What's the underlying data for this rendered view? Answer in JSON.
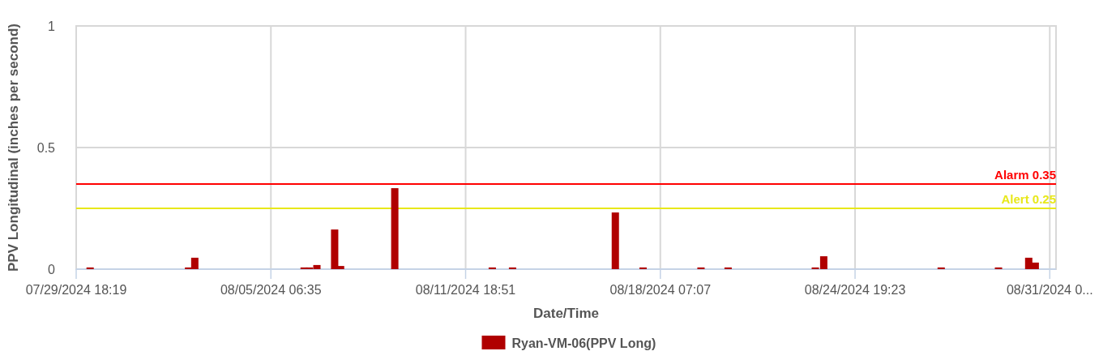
{
  "chart_data": {
    "type": "bar",
    "xlabel": "Date/Time",
    "ylabel": "PPV Longitudinal (inches per second)",
    "x": [
      "2024-07-30T05:30",
      "2024-08-02T12:30",
      "2024-08-02T17:30",
      "2024-08-06T09:15",
      "2024-08-06T13:30",
      "2024-08-06T19:30",
      "2024-08-07T09:45",
      "2024-08-07T14:30",
      "2024-08-09T10:00",
      "2024-08-12T16:15",
      "2024-08-13T08:30",
      "2024-08-16T19:00",
      "2024-08-17T17:15",
      "2024-08-19T15:45",
      "2024-08-20T13:30",
      "2024-08-23T11:30",
      "2024-08-23T18:15",
      "2024-08-27T16:30",
      "2024-08-29T14:30",
      "2024-08-30T14:45",
      "2024-08-30T20:00"
    ],
    "series": [
      {
        "name": "Ryan-VM-06(PPV Long)",
        "color": "#b00000",
        "values": [
          0.007,
          0.007,
          0.047,
          0.007,
          0.007,
          0.017,
          0.163,
          0.013,
          0.333,
          0.007,
          0.007,
          0.233,
          0.007,
          0.007,
          0.007,
          0.007,
          0.053,
          0.007,
          0.007,
          0.047,
          0.027
        ]
      }
    ],
    "xlim": [
      "2024-07-29T18:19",
      "2024-08-31T12:40"
    ],
    "xticks": [
      {
        "value": "2024-07-29T18:19",
        "label": "07/29/2024 18:19"
      },
      {
        "value": "2024-08-05T06:35",
        "label": "08/05/2024 06:35"
      },
      {
        "value": "2024-08-11T18:51",
        "label": "08/11/2024 18:51"
      },
      {
        "value": "2024-08-18T07:07",
        "label": "08/18/2024 07:07"
      },
      {
        "value": "2024-08-24T19:23",
        "label": "08/24/2024 19:23"
      },
      {
        "value": "2024-08-31T07:39",
        "label": "08/31/2024 0..."
      }
    ],
    "ylim": [
      0,
      1
    ],
    "yticks": [
      0,
      0.5,
      1
    ],
    "grid": true,
    "legend": "bottom",
    "ref_lines": [
      {
        "axis": "y",
        "value": 0.35,
        "label": "Alarm 0.35",
        "color": "#ff0000"
      },
      {
        "axis": "y",
        "value": 0.25,
        "label": "Alert 0.25",
        "color": "#e8e81a"
      }
    ]
  }
}
